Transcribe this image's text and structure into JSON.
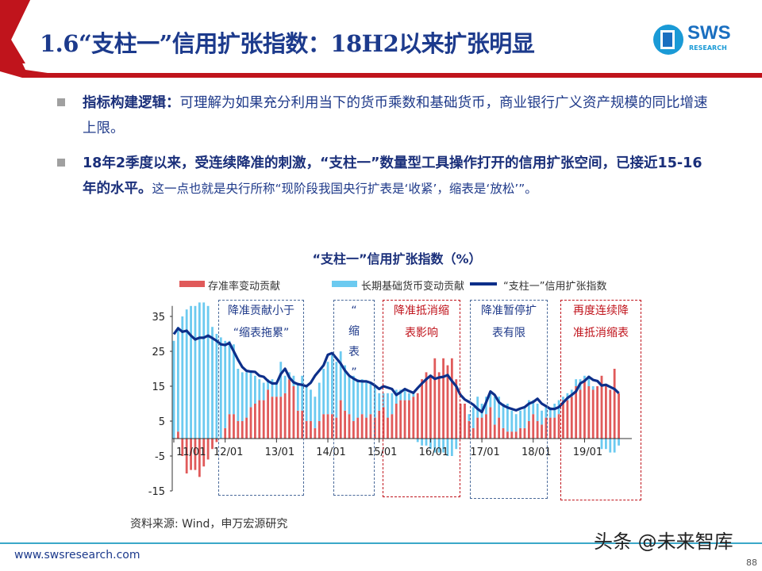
{
  "header": {
    "title": "1.6“支柱一”信用扩张指数：18H2以来扩张明显",
    "logo_text": "SWS",
    "logo_sub": "RESEARCH",
    "accent": "#c0141c",
    "title_color": "#1c3a8c"
  },
  "bullets": [
    {
      "bold": "指标构建逻辑：",
      "text": "可理解为如果充分利用当下的货币乘数和基础货币，商业银行广义资产规模的同比增速上限。"
    },
    {
      "bold": "18年2季度以来，受连续降准的刺激，“支柱一”数量型工具操作打开的信用扩张空间，已接近15-16年的水平。",
      "text": "这一点也就是央行所称“现阶段我国央行扩表是‘收紧’，缩表是‘放松’”。"
    }
  ],
  "chart_data": {
    "type": "bar+line",
    "title": "“支柱一”信用扩张指数（%）",
    "legend": [
      "存准率变动贡献",
      "长期基础货币变动贡献",
      "“支柱一”信用扩张指数"
    ],
    "legend_position": "top",
    "colors": {
      "rrr": "#e05a5a",
      "base_money": "#6ccaf0",
      "index": "#0d2f8a"
    },
    "x_start": "2011-01",
    "x_end": "2019-09",
    "x_ticks": [
      "11/01",
      "12/01",
      "13/01",
      "14/01",
      "15/01",
      "16/01",
      "17/01",
      "18/01",
      "19/01"
    ],
    "y_ticks": [
      35,
      25,
      15,
      5,
      -5,
      -15
    ],
    "ylim": [
      -15,
      40
    ],
    "stacked": true,
    "series": [
      {
        "name": "存准率变动贡献",
        "type": "bar",
        "values": [
          0,
          2,
          -5,
          -10,
          -9,
          -9,
          -11,
          -8,
          -6,
          -3,
          -1,
          0,
          3,
          7,
          7,
          5,
          5,
          6,
          9,
          10,
          11,
          11,
          14,
          12,
          12,
          12,
          13,
          17,
          15,
          8,
          8,
          5,
          5,
          3,
          5,
          7,
          7,
          7,
          6,
          11,
          8,
          7,
          5,
          6,
          7,
          6,
          7,
          6,
          8,
          9,
          6,
          7,
          10,
          11,
          11,
          11,
          12,
          13,
          17,
          19,
          18,
          23,
          19,
          23,
          21,
          23,
          17,
          10,
          10,
          5,
          3,
          6,
          6,
          7,
          9,
          4,
          6,
          3,
          2,
          2,
          2,
          3,
          3,
          5,
          7,
          5,
          4,
          6,
          6,
          6,
          7,
          11,
          11,
          12,
          15,
          14,
          17,
          15,
          14,
          15,
          18,
          15,
          14,
          20,
          13
        ]
      },
      {
        "name": "长期基础货币变动贡献",
        "type": "bar",
        "values": [
          28,
          30,
          35,
          37,
          38,
          38,
          39,
          39,
          38,
          32,
          30,
          29,
          25,
          21,
          20,
          15,
          14,
          13,
          10,
          8,
          6,
          5,
          3,
          5,
          4,
          10,
          5,
          2,
          3,
          8,
          10,
          10,
          9,
          9,
          11,
          13,
          15,
          17,
          16,
          14,
          13,
          11,
          13,
          11,
          10,
          10,
          9,
          9,
          5,
          4,
          7,
          6,
          4,
          3,
          3,
          2,
          1,
          -1,
          -2,
          -2,
          -3,
          -4,
          -4,
          -4,
          -5,
          -5,
          -3,
          0,
          0,
          2,
          6,
          6,
          4,
          5,
          4,
          8,
          6,
          7,
          8,
          6,
          5,
          5,
          6,
          6,
          4,
          5,
          4,
          3,
          3,
          4,
          4,
          1,
          2,
          2,
          2,
          3,
          1,
          3,
          1,
          0,
          -3,
          -3,
          -4,
          -4,
          -2
        ]
      },
      {
        "name": "“支柱一”信用扩张指数",
        "type": "line",
        "values": [
          29.9,
          31.6,
          30.6,
          30.9,
          29.5,
          28.4,
          28.9,
          28.9,
          29.5,
          28.8,
          28,
          27,
          26.8,
          27.4,
          25,
          22.6,
          20.5,
          19.4,
          19.2,
          19.1,
          18,
          17.7,
          16.5,
          15.8,
          15.8,
          18.5,
          20,
          17.5,
          16.1,
          15.6,
          15.4,
          15,
          16,
          18,
          19.5,
          21,
          24,
          24.5,
          23,
          21.5,
          19.5,
          18,
          17.2,
          16.5,
          16.4,
          16.4,
          16,
          15.2,
          14.2,
          15,
          14.6,
          14.2,
          12.5,
          13.3,
          14.2,
          13.6,
          13.1,
          14.5,
          15.8,
          17,
          18,
          17.1,
          17.5,
          17.7,
          18.2,
          16.5,
          15,
          12.5,
          11.2,
          10.5,
          9.7,
          8.5,
          7.6,
          10.4,
          13.5,
          12.5,
          10.4,
          9.5,
          8.9,
          8.5,
          8.1,
          8.6,
          9,
          10,
          10.5,
          11.4,
          10,
          9.3,
          8.5,
          8.5,
          9,
          10.3,
          11.6,
          12.5,
          13.5,
          15.8,
          16.5,
          17.7,
          16.8,
          16.5,
          15.2,
          15.4,
          14.8,
          14.2,
          13
        ]
      }
    ],
    "annotations": [
      {
        "text": [
          "降准贡献小于",
          "“缩表拖累”"
        ],
        "color": "#1f3a8a",
        "border": "#4a6a9a"
      },
      {
        "text": [
          "“",
          "缩",
          "表",
          "”"
        ],
        "color": "#1f3a8a",
        "border": "#4a6a9a"
      },
      {
        "text": [
          "降准抵消缩",
          "表影响"
        ],
        "color": "#c0141c",
        "border": "#c0141c"
      },
      {
        "text": [
          "降准暂停扩",
          "表有限"
        ],
        "color": "#1f3a8a",
        "border": "#4a6a9a"
      },
      {
        "text": [
          "再度连续降",
          "准抵消缩表"
        ],
        "color": "#c0141c",
        "border": "#c0141c"
      }
    ]
  },
  "source": "资料来源: Wind，申万宏源研究",
  "footer": {
    "url": "www.swsresearch.com",
    "page": "88",
    "watermark": "头条 @未来智库"
  }
}
